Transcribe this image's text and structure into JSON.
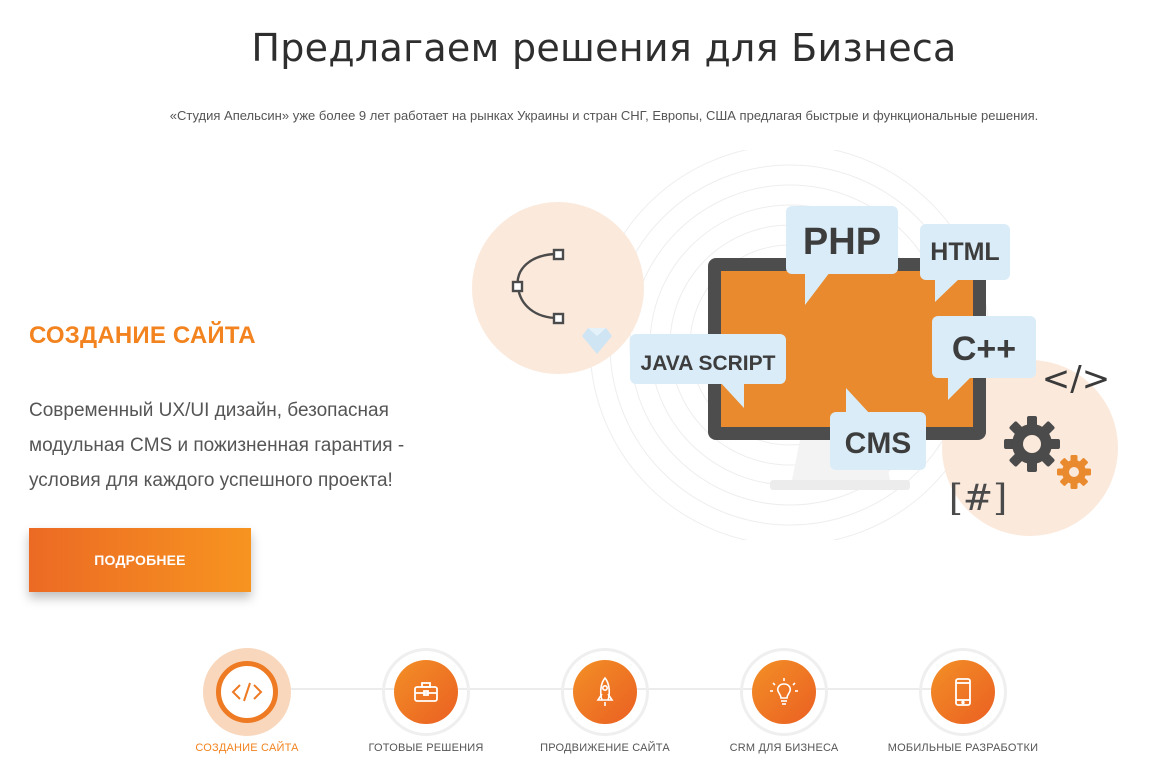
{
  "header": {
    "title": "Предлагаем решения для Бизнеса",
    "subtitle": "«Студия Апельсин» уже более 9 лет работает на рынках Украины и стран СНГ, Европы, США предлагая быстрые и функциональные решения."
  },
  "slide": {
    "title": "СОЗДАНИЕ САЙТА",
    "description": "Современный UX/UI дизайн, безопасная модульная CMS и пожизненная гарантия - условия для каждого успешного проекта!",
    "button_label": "ПОДРОБНЕЕ"
  },
  "illustration": {
    "bubbles": [
      "PHP",
      "HTML",
      "C++",
      "JAVA SCRIPT",
      "CMS"
    ],
    "code_symbol": "</>",
    "hash_symbol": "[#]"
  },
  "nav": {
    "items": [
      {
        "label": "СОЗДАНИЕ САЙТА",
        "icon": "code-icon",
        "active": true
      },
      {
        "label": "ГОТОВЫЕ РЕШЕНИЯ",
        "icon": "briefcase-icon",
        "active": false
      },
      {
        "label": "ПРОДВИЖЕНИЕ САЙТА",
        "icon": "rocket-icon",
        "active": false
      },
      {
        "label": "CRM ДЛЯ БИЗНЕСА",
        "icon": "lightbulb-icon",
        "active": false
      },
      {
        "label": "МОБИЛЬНЫЕ РАЗРАБОТКИ",
        "icon": "smartphone-icon",
        "active": false
      }
    ]
  },
  "colors": {
    "accent": "#f2831f",
    "accent_dark": "#ea5f22",
    "bubble": "#d9ecf8",
    "screen": "#ea8c2a"
  }
}
